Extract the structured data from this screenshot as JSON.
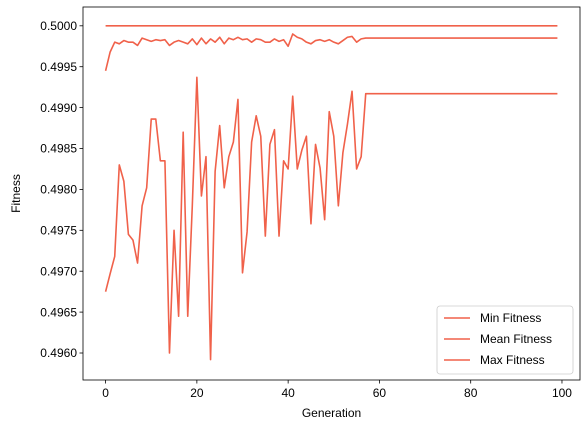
{
  "chart_data": {
    "type": "line",
    "title": "",
    "xlabel": "Generation",
    "ylabel": "Fitness",
    "xlim": [
      -4.95,
      103.95
    ],
    "ylim": [
      0.49567,
      0.50023
    ],
    "xticks": [
      0,
      20,
      40,
      60,
      80,
      100
    ],
    "yticks": [
      0.496,
      0.4965,
      0.497,
      0.4975,
      0.498,
      0.4985,
      0.499,
      0.4995,
      0.5
    ],
    "grid": false,
    "legend": "lower-right",
    "line_color": "#f0614a",
    "series": [
      {
        "name": "Min Fitness",
        "x": [
          0,
          1,
          2,
          3,
          4,
          5,
          6,
          7,
          8,
          9,
          10,
          11,
          12,
          13,
          14,
          15,
          16,
          17,
          18,
          19,
          20,
          21,
          22,
          23,
          24,
          25,
          26,
          27,
          28,
          29,
          30,
          31,
          32,
          33,
          34,
          35,
          36,
          37,
          38,
          39,
          40,
          41,
          42,
          43,
          44,
          45,
          46,
          47,
          48,
          49,
          50,
          51,
          52,
          53,
          54,
          55,
          56,
          57,
          99
        ],
        "y": [
          0.49675,
          0.49697,
          0.49718,
          0.4983,
          0.4981,
          0.49745,
          0.49738,
          0.4971,
          0.4978,
          0.49802,
          0.49886,
          0.49886,
          0.49835,
          0.49835,
          0.496,
          0.4975,
          0.49645,
          0.4987,
          0.49645,
          0.4978,
          0.49937,
          0.49792,
          0.4984,
          0.49592,
          0.49822,
          0.49878,
          0.49802,
          0.4984,
          0.49858,
          0.4991,
          0.49698,
          0.49748,
          0.49858,
          0.4989,
          0.49865,
          0.49743,
          0.49855,
          0.49873,
          0.49743,
          0.49835,
          0.49825,
          0.49914,
          0.49825,
          0.49848,
          0.49865,
          0.49758,
          0.49855,
          0.49826,
          0.49763,
          0.49895,
          0.49865,
          0.4978,
          0.49845,
          0.4988,
          0.4992,
          0.49825,
          0.4984,
          0.49917,
          0.49917
        ]
      },
      {
        "name": "Mean Fitness",
        "x": [
          0,
          1,
          2,
          3,
          4,
          5,
          6,
          7,
          8,
          9,
          10,
          11,
          12,
          13,
          14,
          15,
          16,
          17,
          18,
          19,
          20,
          21,
          22,
          23,
          24,
          25,
          26,
          27,
          28,
          29,
          30,
          31,
          32,
          33,
          34,
          35,
          36,
          37,
          38,
          39,
          40,
          41,
          42,
          43,
          44,
          45,
          46,
          47,
          48,
          49,
          50,
          51,
          52,
          53,
          54,
          55,
          56,
          57,
          99
        ],
        "y": [
          0.49945,
          0.49968,
          0.4998,
          0.49978,
          0.49982,
          0.4998,
          0.4998,
          0.49976,
          0.49985,
          0.49983,
          0.49981,
          0.49983,
          0.49982,
          0.49983,
          0.49976,
          0.4998,
          0.49982,
          0.4998,
          0.49978,
          0.49984,
          0.49977,
          0.49985,
          0.49978,
          0.49984,
          0.4998,
          0.49986,
          0.49978,
          0.49985,
          0.49983,
          0.49986,
          0.49983,
          0.49984,
          0.4998,
          0.49984,
          0.49983,
          0.4998,
          0.4998,
          0.49984,
          0.49981,
          0.49983,
          0.49975,
          0.4999,
          0.49986,
          0.49984,
          0.4998,
          0.49978,
          0.49982,
          0.49983,
          0.49981,
          0.49983,
          0.4998,
          0.49978,
          0.49982,
          0.49986,
          0.49987,
          0.4998,
          0.49984,
          0.49985,
          0.49985
        ]
      },
      {
        "name": "Max Fitness",
        "x": [
          0,
          99
        ],
        "y": [
          0.5,
          0.5
        ]
      }
    ]
  }
}
